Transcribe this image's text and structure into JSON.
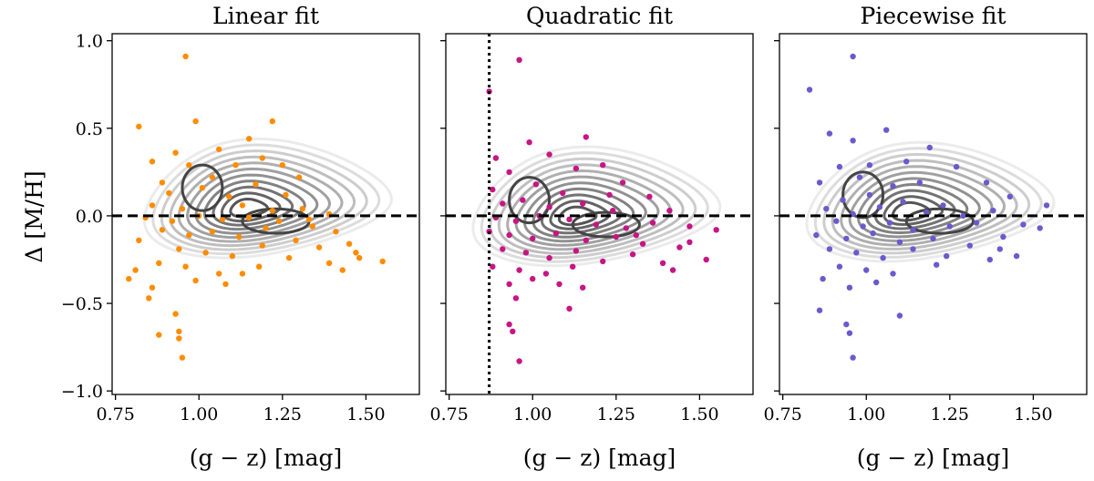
{
  "figure": {
    "shared_ylabel": "Δ [M/H]",
    "shared_xlabel": "(g − z) [mag]",
    "x_ticks": [
      "0.75",
      "1.00",
      "1.25",
      "1.50"
    ],
    "y_ticks": [
      "−1.0",
      "−0.5",
      "0.0",
      "0.5",
      "1.0"
    ]
  },
  "chart_data": [
    {
      "type": "scatter",
      "title": "Linear fit",
      "xlabel": "(g − z) [mag]",
      "ylabel": "Δ [M/H]",
      "xlim": [
        0.74,
        1.66
      ],
      "ylim": [
        -1.02,
        1.04
      ],
      "reference_lines": [
        {
          "orientation": "horizontal",
          "value": 0.0,
          "style": "dashed"
        }
      ],
      "density_contours": {
        "color": "gray",
        "peaks": [
          [
            1.01,
            0.16
          ],
          [
            1.23,
            -0.03
          ]
        ]
      },
      "series": [
        {
          "color": "#ff8c00",
          "points": [
            [
              0.96,
              0.91
            ],
            [
              1.22,
              0.54
            ],
            [
              0.99,
              0.54
            ],
            [
              0.82,
              0.51
            ],
            [
              1.15,
              0.44
            ],
            [
              0.93,
              0.36
            ],
            [
              1.06,
              0.38
            ],
            [
              1.19,
              0.33
            ],
            [
              0.86,
              0.31
            ],
            [
              0.97,
              0.29
            ],
            [
              1.11,
              0.29
            ],
            [
              1.3,
              0.22
            ],
            [
              0.89,
              0.19
            ],
            [
              1.04,
              0.22
            ],
            [
              1.17,
              0.18
            ],
            [
              1.26,
              0.12
            ],
            [
              0.91,
              0.13
            ],
            [
              1.01,
              0.16
            ],
            [
              1.09,
              0.11
            ],
            [
              0.86,
              0.06
            ],
            [
              0.95,
              0.04
            ],
            [
              1.13,
              0.06
            ],
            [
              1.22,
              0.03
            ],
            [
              1.31,
              0.04
            ],
            [
              1.39,
              0.01
            ],
            [
              0.84,
              -0.01
            ],
            [
              0.92,
              -0.03
            ],
            [
              1.0,
              0.0
            ],
            [
              1.07,
              -0.02
            ],
            [
              1.15,
              -0.01
            ],
            [
              1.24,
              -0.03
            ],
            [
              1.34,
              -0.06
            ],
            [
              1.41,
              -0.09
            ],
            [
              0.89,
              -0.08
            ],
            [
              0.97,
              -0.11
            ],
            [
              1.04,
              -0.09
            ],
            [
              1.12,
              -0.12
            ],
            [
              1.2,
              -0.07
            ],
            [
              1.29,
              -0.14
            ],
            [
              1.36,
              -0.18
            ],
            [
              1.45,
              -0.16
            ],
            [
              0.82,
              -0.14
            ],
            [
              0.94,
              -0.19
            ],
            [
              1.02,
              -0.21
            ],
            [
              1.1,
              -0.23
            ],
            [
              1.19,
              -0.17
            ],
            [
              1.27,
              -0.24
            ],
            [
              1.39,
              -0.27
            ],
            [
              1.48,
              -0.24
            ],
            [
              1.55,
              -0.26
            ],
            [
              0.81,
              -0.31
            ],
            [
              0.88,
              -0.27
            ],
            [
              0.96,
              -0.29
            ],
            [
              1.06,
              -0.33
            ],
            [
              1.18,
              -0.29
            ],
            [
              1.43,
              -0.31
            ],
            [
              0.79,
              -0.36
            ],
            [
              0.86,
              -0.41
            ],
            [
              0.99,
              -0.37
            ],
            [
              1.08,
              -0.39
            ],
            [
              0.85,
              -0.47
            ],
            [
              0.93,
              -0.56
            ],
            [
              0.94,
              -0.66
            ],
            [
              0.88,
              -0.68
            ],
            [
              0.94,
              -0.7
            ],
            [
              0.95,
              -0.81
            ],
            [
              1.25,
              0.29
            ],
            [
              1.33,
              -0.02
            ],
            [
              1.47,
              -0.21
            ],
            [
              1.13,
              -0.33
            ]
          ]
        }
      ]
    },
    {
      "type": "scatter",
      "title": "Quadratic fit",
      "xlabel": "(g − z) [mag]",
      "ylabel": "",
      "xlim": [
        0.74,
        1.66
      ],
      "ylim": [
        -1.02,
        1.04
      ],
      "reference_lines": [
        {
          "orientation": "horizontal",
          "value": 0.0,
          "style": "dashed"
        },
        {
          "orientation": "vertical",
          "value": 0.87,
          "style": "dotted"
        }
      ],
      "density_contours": {
        "color": "gray",
        "peaks": [
          [
            0.99,
            0.09
          ],
          [
            1.22,
            -0.05
          ]
        ]
      },
      "series": [
        {
          "color": "#c71585",
          "points": [
            [
              0.96,
              0.89
            ],
            [
              0.87,
              0.71
            ],
            [
              1.16,
              0.45
            ],
            [
              0.99,
              0.42
            ],
            [
              0.89,
              0.33
            ],
            [
              1.05,
              0.35
            ],
            [
              1.13,
              0.27
            ],
            [
              1.21,
              0.29
            ],
            [
              0.93,
              0.25
            ],
            [
              1.27,
              0.19
            ],
            [
              0.88,
              0.15
            ],
            [
              1.01,
              0.18
            ],
            [
              1.09,
              0.13
            ],
            [
              1.35,
              0.11
            ],
            [
              0.91,
              0.07
            ],
            [
              0.97,
              0.09
            ],
            [
              1.05,
              0.05
            ],
            [
              1.15,
              0.07
            ],
            [
              1.24,
              0.03
            ],
            [
              1.41,
              0.03
            ],
            [
              0.89,
              -0.01
            ],
            [
              0.95,
              -0.03
            ],
            [
              1.02,
              0.0
            ],
            [
              1.11,
              -0.02
            ],
            [
              1.19,
              -0.05
            ],
            [
              1.28,
              -0.07
            ],
            [
              1.36,
              -0.04
            ],
            [
              1.47,
              -0.06
            ],
            [
              1.55,
              -0.08
            ],
            [
              0.87,
              -0.09
            ],
            [
              0.93,
              -0.11
            ],
            [
              1.0,
              -0.13
            ],
            [
              1.07,
              -0.1
            ],
            [
              1.16,
              -0.14
            ],
            [
              1.25,
              -0.12
            ],
            [
              1.33,
              -0.16
            ],
            [
              1.44,
              -0.18
            ],
            [
              0.91,
              -0.19
            ],
            [
              0.98,
              -0.21
            ],
            [
              1.05,
              -0.24
            ],
            [
              1.13,
              -0.2
            ],
            [
              1.21,
              -0.26
            ],
            [
              1.3,
              -0.22
            ],
            [
              1.39,
              -0.27
            ],
            [
              1.52,
              -0.25
            ],
            [
              0.88,
              -0.29
            ],
            [
              0.96,
              -0.31
            ],
            [
              1.04,
              -0.33
            ],
            [
              1.12,
              -0.29
            ],
            [
              1.42,
              -0.31
            ],
            [
              0.93,
              -0.39
            ],
            [
              1.0,
              -0.36
            ],
            [
              1.08,
              -0.39
            ],
            [
              1.15,
              -0.41
            ],
            [
              0.95,
              -0.47
            ],
            [
              1.11,
              -0.53
            ],
            [
              0.93,
              -0.62
            ],
            [
              0.94,
              -0.66
            ],
            [
              0.96,
              -0.83
            ],
            [
              1.31,
              -0.11
            ],
            [
              1.47,
              -0.15
            ],
            [
              1.23,
              0.12
            ]
          ]
        }
      ]
    },
    {
      "type": "scatter",
      "title": "Piecewise fit",
      "xlabel": "(g − z) [mag]",
      "ylabel": "",
      "xlim": [
        0.74,
        1.66
      ],
      "ylim": [
        -1.02,
        1.04
      ],
      "reference_lines": [
        {
          "orientation": "horizontal",
          "value": 0.0,
          "style": "dashed"
        }
      ],
      "density_contours": {
        "color": "gray",
        "peaks": [
          [
            0.99,
            0.12
          ],
          [
            1.22,
            -0.03
          ]
        ]
      },
      "series": [
        {
          "color": "#6a5acd",
          "points": [
            [
              0.96,
              0.91
            ],
            [
              0.83,
              0.72
            ],
            [
              0.89,
              0.47
            ],
            [
              1.06,
              0.49
            ],
            [
              0.96,
              0.43
            ],
            [
              1.19,
              0.39
            ],
            [
              1.12,
              0.31
            ],
            [
              0.92,
              0.28
            ],
            [
              1.01,
              0.29
            ],
            [
              1.27,
              0.28
            ],
            [
              0.86,
              0.19
            ],
            [
              0.98,
              0.22
            ],
            [
              1.08,
              0.17
            ],
            [
              1.16,
              0.19
            ],
            [
              1.36,
              0.19
            ],
            [
              0.93,
              0.09
            ],
            [
              1.01,
              0.12
            ],
            [
              1.11,
              0.08
            ],
            [
              1.23,
              0.06
            ],
            [
              1.43,
              0.11
            ],
            [
              0.88,
              0.04
            ],
            [
              0.96,
              0.01
            ],
            [
              1.04,
              0.05
            ],
            [
              1.18,
              0.02
            ],
            [
              1.29,
              0.0
            ],
            [
              1.38,
              0.03
            ],
            [
              1.54,
              0.06
            ],
            [
              0.91,
              -0.03
            ],
            [
              0.99,
              -0.06
            ],
            [
              1.07,
              -0.04
            ],
            [
              1.14,
              -0.08
            ],
            [
              1.25,
              -0.06
            ],
            [
              1.33,
              -0.04
            ],
            [
              1.47,
              -0.05
            ],
            [
              0.85,
              -0.11
            ],
            [
              0.94,
              -0.13
            ],
            [
              1.02,
              -0.1
            ],
            [
              1.1,
              -0.15
            ],
            [
              1.2,
              -0.13
            ],
            [
              1.31,
              -0.17
            ],
            [
              1.41,
              -0.12
            ],
            [
              0.89,
              -0.19
            ],
            [
              0.97,
              -0.21
            ],
            [
              1.05,
              -0.24
            ],
            [
              1.14,
              -0.19
            ],
            [
              1.24,
              -0.23
            ],
            [
              1.37,
              -0.25
            ],
            [
              1.45,
              -0.23
            ],
            [
              0.92,
              -0.29
            ],
            [
              1.0,
              -0.31
            ],
            [
              1.08,
              -0.33
            ],
            [
              1.21,
              -0.28
            ],
            [
              0.87,
              -0.36
            ],
            [
              0.95,
              -0.41
            ],
            [
              1.03,
              -0.38
            ],
            [
              0.86,
              -0.54
            ],
            [
              1.1,
              -0.57
            ],
            [
              0.94,
              -0.62
            ],
            [
              0.95,
              -0.67
            ],
            [
              0.96,
              -0.81
            ],
            [
              1.4,
              -0.19
            ],
            [
              1.52,
              -0.07
            ]
          ]
        }
      ]
    }
  ]
}
